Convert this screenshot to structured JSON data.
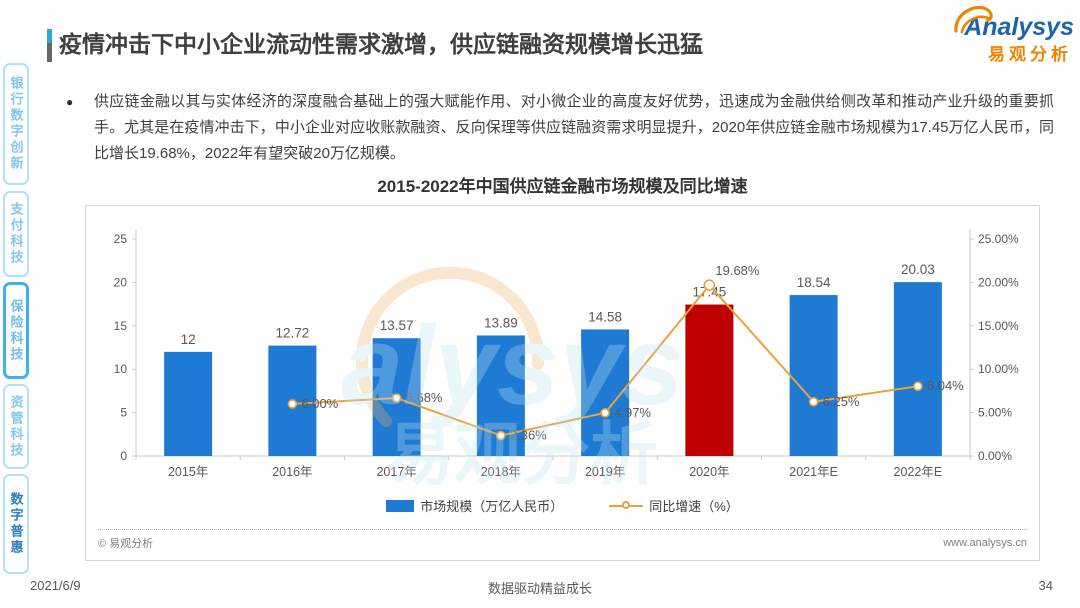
{
  "page": {
    "title": "疫情冲击下中小企业流动性需求激增，供应链融资规模增长迅猛",
    "date": "2021/6/9",
    "footer_center": "数据驱动精益成长",
    "page_number": "34",
    "bullet_symbol": "●"
  },
  "logo": {
    "wordmark": "Analysys",
    "subtitle": "易观分析",
    "brand_blue": "#1a66ad",
    "brand_orange": "#f08300"
  },
  "sidebar": {
    "items": [
      {
        "label": "银行数字创新",
        "active": false,
        "emphasis": false
      },
      {
        "label": "支付科技",
        "active": false,
        "emphasis": false
      },
      {
        "label": "保险科技",
        "active": true,
        "emphasis": false
      },
      {
        "label": "资管科技",
        "active": false,
        "emphasis": false
      },
      {
        "label": "数字普惠",
        "active": false,
        "emphasis": true
      }
    ]
  },
  "bullet": {
    "text": "供应链金融以其与实体经济的深度融合基础上的强大赋能作用、对小微企业的高度友好优势，迅速成为金融供给侧改革和推动产业升级的重要抓手。尤其是在疫情冲击下，中小企业对应收账款融资、反向保理等供应链融资需求明显提升，2020年供应链金融市场规模为17.45万亿人民币，同比增长19.68%，2022年有望突破20万亿规模。"
  },
  "chart_data": {
    "type": "bar",
    "title": "2015-2022年中国供应链金融市场规模及同比增速",
    "categories": [
      "2015年",
      "2016年",
      "2017年",
      "2018年",
      "2019年",
      "2020年",
      "2021年E",
      "2022年E"
    ],
    "series": [
      {
        "name": "市场规模（万亿人民币）",
        "type": "bar",
        "axis": "left",
        "values": [
          12,
          12.72,
          13.57,
          13.89,
          14.58,
          17.45,
          18.54,
          20.03
        ],
        "labels": [
          "12",
          "12.72",
          "13.57",
          "13.89",
          "14.58",
          "17.45",
          "18.54",
          "20.03"
        ],
        "color": "#1e7ad2",
        "highlight_index": 5,
        "highlight_color": "#c00000"
      },
      {
        "name": "同比增速（%）",
        "type": "line",
        "axis": "right",
        "values": [
          null,
          6.0,
          6.68,
          2.36,
          4.97,
          19.68,
          6.25,
          8.04
        ],
        "labels": [
          null,
          "6.00%",
          "6.68%",
          "2.36%",
          "4.97%",
          "19.68%",
          "6.25%",
          "8.04%"
        ],
        "color": "#e8a33d"
      }
    ],
    "left_axis": {
      "min": 0,
      "max": 25,
      "ticks": [
        "0",
        "5",
        "10",
        "15",
        "20",
        "25"
      ]
    },
    "right_axis": {
      "min": 0,
      "max": 25,
      "ticks": [
        "0.00%",
        "5.00%",
        "10.00%",
        "15.00%",
        "20.00%",
        "25.00%"
      ]
    },
    "grid": false,
    "legend_position": "bottom",
    "copyright": "© 易观分析",
    "website": "www.analysys.cn",
    "watermark_text": "alysys",
    "watermark_subtext": "易观分析"
  }
}
